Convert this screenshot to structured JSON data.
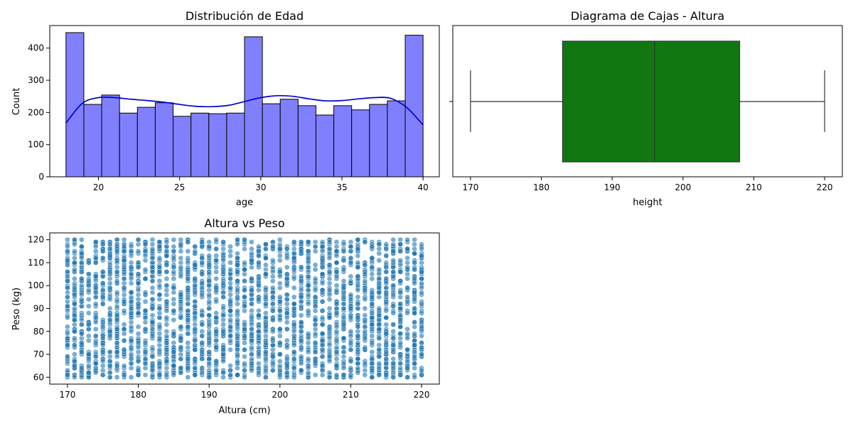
{
  "chart_data": [
    {
      "type": "bar",
      "title": "Distribución de Edad",
      "xlabel": "age",
      "ylabel": "Count",
      "xlim": [
        17,
        41
      ],
      "ylim": [
        0,
        470
      ],
      "xticks": [
        20,
        25,
        30,
        35,
        40
      ],
      "yticks": [
        0,
        100,
        200,
        300,
        400
      ],
      "bin_edges": [
        18.0,
        19.1,
        20.2,
        21.3,
        22.4,
        23.5,
        24.6,
        25.7,
        26.8,
        27.9,
        29.0,
        30.1,
        31.2,
        32.3,
        33.4,
        34.5,
        35.6,
        36.7,
        37.8,
        38.9,
        40.0
      ],
      "values": [
        448,
        225,
        254,
        198,
        216,
        230,
        188,
        198,
        196,
        198,
        435,
        227,
        241,
        221,
        192,
        221,
        208,
        225,
        236,
        440
      ],
      "bar_color": "#8080ff",
      "kde": {
        "color": "#0000d6",
        "x": [
          18,
          19,
          20,
          21,
          22,
          23,
          24,
          25,
          26,
          27,
          28,
          29,
          30,
          31,
          32,
          33,
          34,
          35,
          36,
          37,
          38,
          39,
          40
        ],
        "y": [
          167,
          228,
          246,
          246,
          241,
          237,
          232,
          225,
          219,
          218,
          222,
          234,
          246,
          252,
          250,
          242,
          236,
          237,
          242,
          246,
          244,
          215,
          161
        ]
      }
    },
    {
      "type": "box",
      "title": "Diagrama de Cajas - Altura",
      "xlabel": "height",
      "xlim": [
        167.5,
        222.5
      ],
      "xticks": [
        170,
        180,
        190,
        200,
        210,
        220
      ],
      "box": {
        "min": 170,
        "q1": 183,
        "median": 196,
        "q3": 208,
        "max": 220
      },
      "box_color": "#117711"
    },
    {
      "type": "scatter",
      "title": "Altura vs Peso",
      "xlabel": "Altura (cm)",
      "ylabel": "Peso (kg)",
      "xlim": [
        167.5,
        222.5
      ],
      "ylim": [
        57,
        123
      ],
      "xticks": [
        170,
        180,
        190,
        200,
        210,
        220
      ],
      "yticks": [
        60,
        70,
        80,
        90,
        100,
        110,
        120
      ],
      "x_range": [
        170,
        220
      ],
      "y_range": [
        60,
        120
      ],
      "point_color": "#1f77b4"
    }
  ]
}
